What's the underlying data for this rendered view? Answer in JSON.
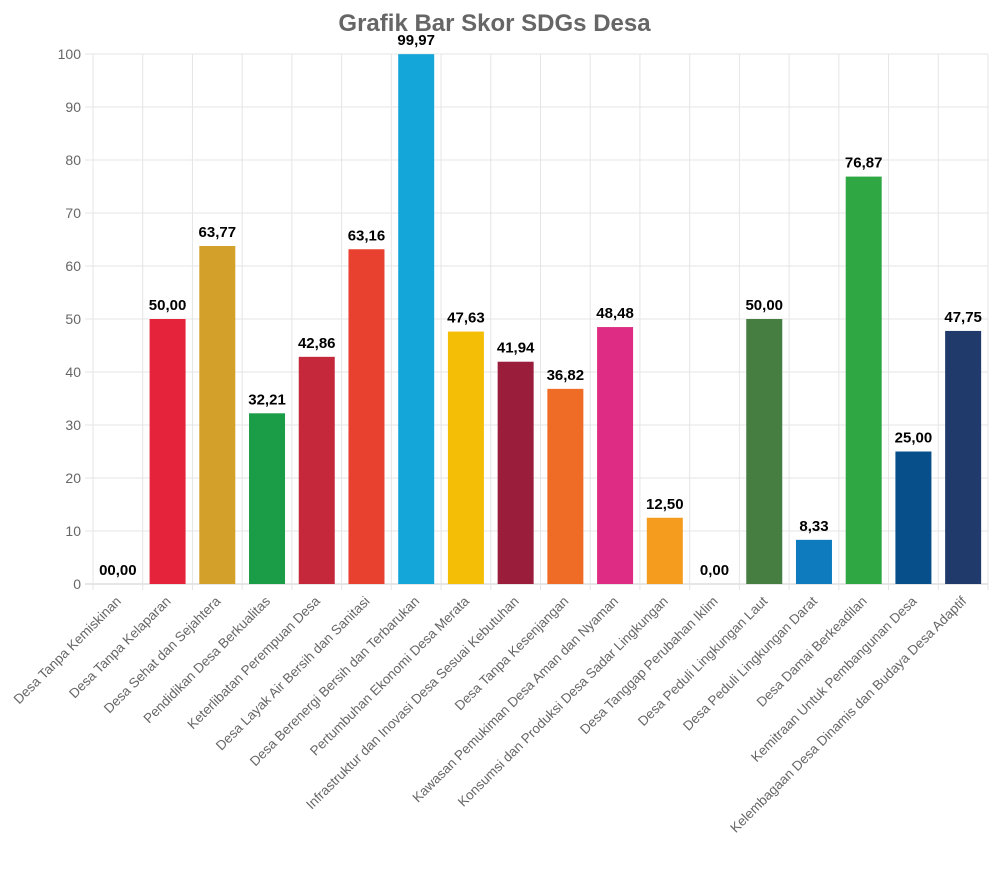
{
  "chart_data": {
    "type": "bar",
    "title": "Grafik Bar Skor SDGs Desa",
    "xlabel": "",
    "ylabel": "",
    "ylim": [
      0,
      100
    ],
    "yticks": [
      "0",
      "10",
      "20",
      "30",
      "40",
      "50",
      "60",
      "70",
      "80",
      "90",
      "100"
    ],
    "grid": true,
    "legend": "none",
    "categories": [
      "Desa Tanpa Kemiskinan",
      "Desa Tanpa Kelaparan",
      "Desa Sehat dan Sejahtera",
      "Pendidikan Desa Berkualitas",
      "Keterlibatan Perempuan Desa",
      "Desa Layak Air Bersih dan Sanitasi",
      "Desa Berenergi Bersih dan Terbarukan",
      "Pertumbuhan Ekonomi Desa Merata",
      "Infrastruktur dan Inovasi Desa Sesuai Kebutuhan",
      "Desa Tanpa Kesenjangan",
      "Kawasan Pemukiman Desa Aman dan Nyaman",
      "Konsumsi dan Produksi Desa Sadar Lingkungan",
      "Desa Tanggap Perubahan Iklim",
      "Desa Peduli Lingkungan Laut",
      "Desa Peduli Lingkungan Darat",
      "Desa Damai Berkeadilan",
      "Kemitraan Untuk Pembangunan Desa",
      "Kelembagaan Desa Dinamis dan Budaya Desa Adaptif"
    ],
    "values": [
      0,
      50.0,
      63.77,
      32.21,
      42.86,
      63.16,
      99.97,
      47.63,
      41.94,
      36.82,
      48.48,
      12.5,
      0,
      50.0,
      8.33,
      76.87,
      25.0,
      47.75
    ],
    "value_labels": [
      "00,00",
      "50,00",
      "63,77",
      "32,21",
      "42,86",
      "63,16",
      "99,97",
      "47,63",
      "41,94",
      "36,82",
      "48,48",
      "12,50",
      "0,00",
      "50,00",
      "8,33",
      "76,87",
      "25,00",
      "47,75"
    ],
    "colors": [
      "#E5243B",
      "#E5243B",
      "#D3A029",
      "#1B9C46",
      "#C6283B",
      "#E9412F",
      "#14A6D9",
      "#F4BE07",
      "#9A1E3C",
      "#EF6C26",
      "#DE2C85",
      "#F59C1F",
      "#3F7E44",
      "#467D41",
      "#0D7BBE",
      "#2FA843",
      "#064F8A",
      "#1F3A6B"
    ]
  }
}
